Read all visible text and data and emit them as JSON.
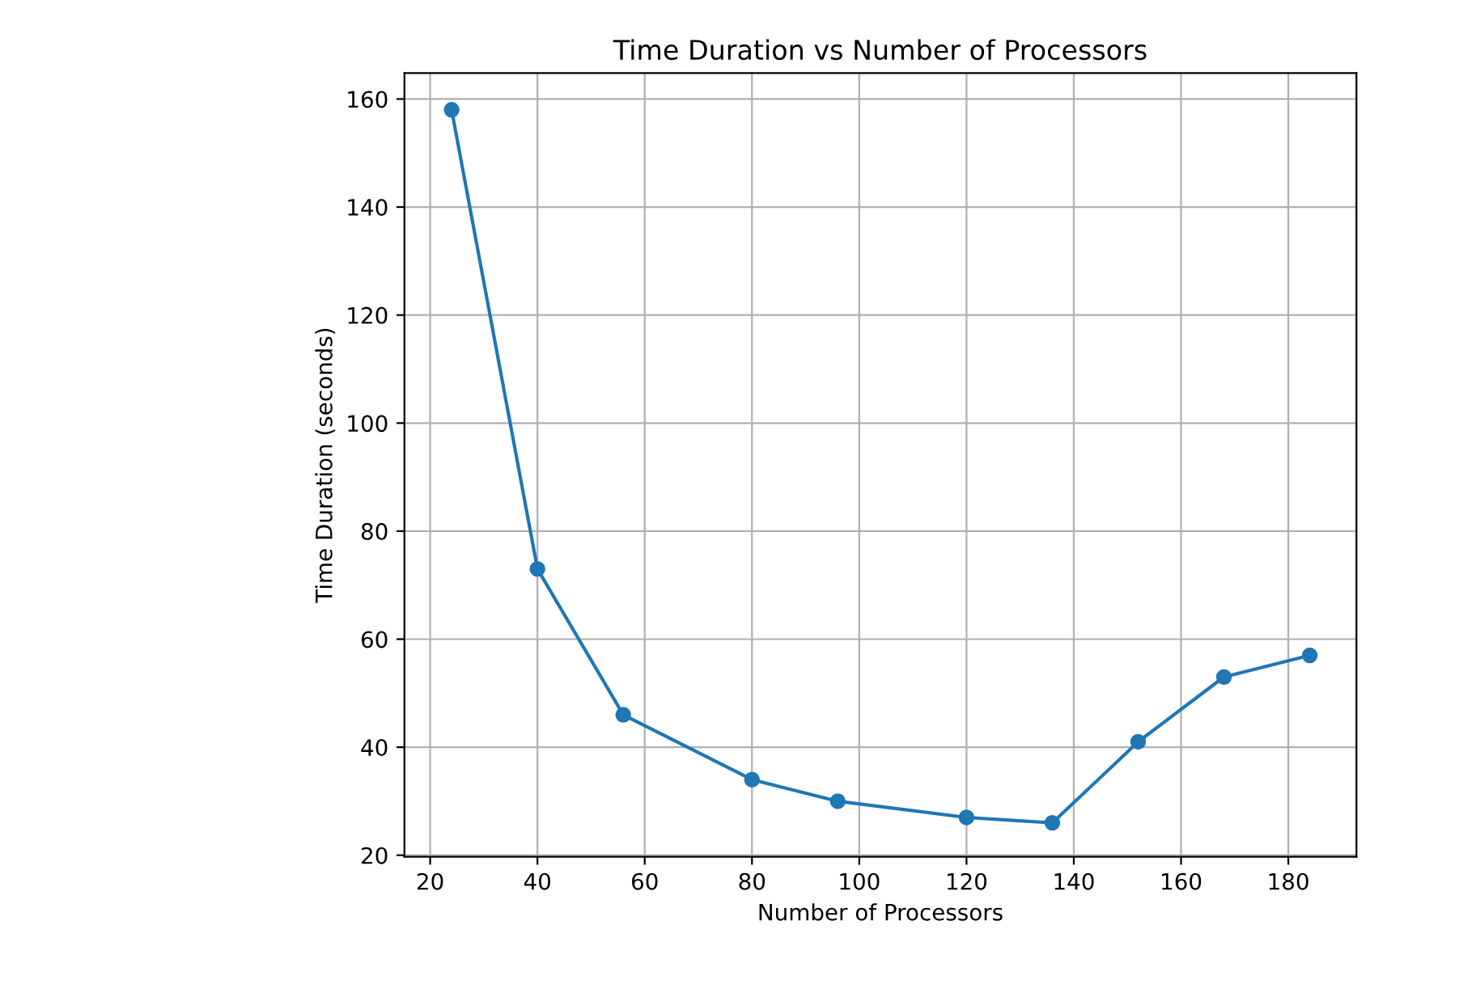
{
  "chart_data": {
    "type": "line",
    "title": "Time Duration vs Number of Processors",
    "xlabel": "Number of Processors",
    "ylabel": "Time Duration (seconds)",
    "x": [
      24,
      40,
      56,
      80,
      96,
      120,
      136,
      152,
      168,
      184
    ],
    "series": [
      {
        "color": "#1f77b4",
        "values": [
          158,
          73,
          46,
          34,
          30,
          27,
          26,
          41,
          53,
          57
        ]
      }
    ],
    "xlim": [
      15.2,
      192.7
    ],
    "ylim": [
      19.7,
      164.8
    ],
    "xticks": [
      20,
      40,
      60,
      80,
      100,
      120,
      140,
      160,
      180
    ],
    "yticks": [
      20,
      40,
      60,
      80,
      100,
      120,
      140,
      160
    ],
    "grid": true,
    "marker": "circle",
    "line_style": "solid"
  }
}
